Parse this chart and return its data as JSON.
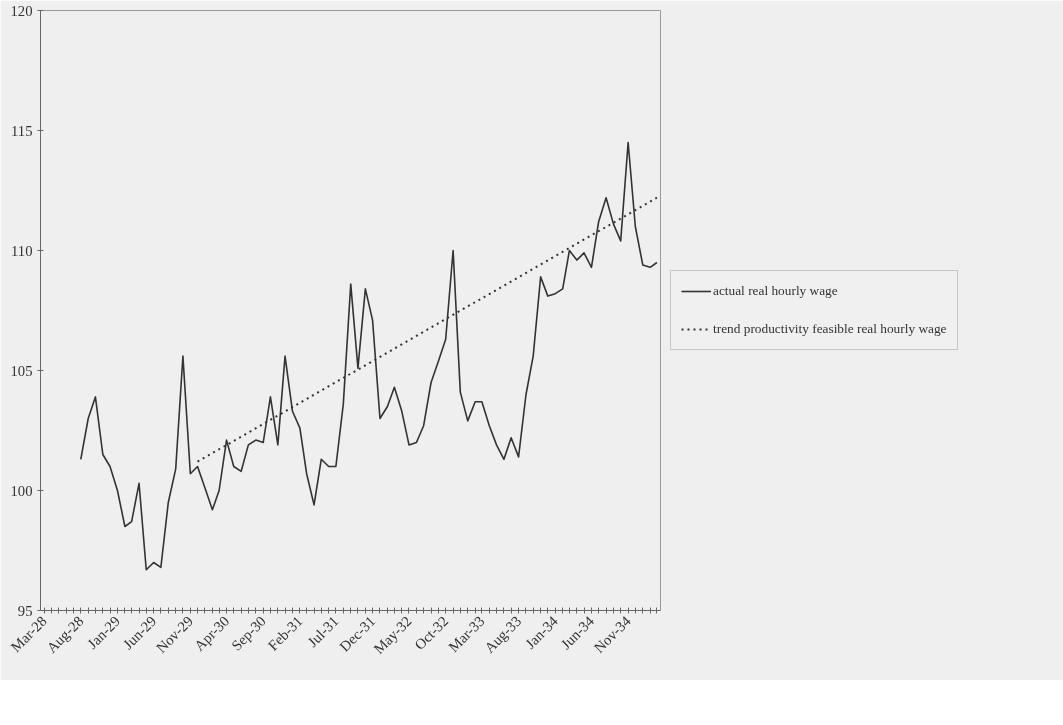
{
  "chart_data": {
    "type": "line",
    "series": [
      {
        "name": "actual real hourly wage",
        "color": "#333333",
        "line_style": "solid",
        "x": [
          "1928-08",
          "1928-09",
          "1928-10",
          "1928-11",
          "1928-12",
          "1929-01",
          "1929-02",
          "1929-03",
          "1929-04",
          "1929-05",
          "1929-06",
          "1929-07",
          "1929-08",
          "1929-09",
          "1929-10",
          "1929-11",
          "1929-12",
          "1930-01",
          "1930-02",
          "1930-03",
          "1930-04",
          "1930-05",
          "1930-06",
          "1930-07",
          "1930-08",
          "1930-09",
          "1930-10",
          "1930-11",
          "1930-12",
          "1931-01",
          "1931-02",
          "1931-03",
          "1931-04",
          "1931-05",
          "1931-06",
          "1931-07",
          "1931-08",
          "1931-09",
          "1931-10",
          "1931-11",
          "1931-12",
          "1932-01",
          "1932-02",
          "1932-03",
          "1932-04",
          "1932-05",
          "1932-06",
          "1932-07",
          "1932-08",
          "1932-09",
          "1932-10",
          "1932-11",
          "1932-12",
          "1933-01",
          "1933-02",
          "1933-03",
          "1933-04",
          "1933-05",
          "1933-06",
          "1933-07",
          "1933-08",
          "1933-09",
          "1933-10",
          "1933-11",
          "1933-12",
          "1934-01",
          "1934-02",
          "1934-03",
          "1934-04",
          "1934-05",
          "1934-06",
          "1934-07",
          "1934-08",
          "1934-09",
          "1934-10",
          "1934-11",
          "1934-12",
          "1935-01",
          "1935-02",
          "1935-03"
        ],
        "values": [
          101.3,
          103.0,
          103.9,
          101.5,
          101.0,
          100.0,
          98.5,
          98.7,
          100.3,
          96.7,
          97.0,
          96.8,
          99.5,
          100.9,
          105.6,
          100.7,
          101.0,
          100.1,
          99.2,
          100.0,
          102.1,
          101.0,
          100.8,
          101.9,
          102.1,
          102.0,
          103.9,
          101.9,
          105.6,
          103.3,
          102.6,
          100.7,
          99.4,
          101.3,
          101.0,
          101.0,
          103.6,
          108.6,
          105.1,
          108.4,
          107.1,
          103.0,
          103.5,
          104.3,
          103.3,
          101.9,
          102.0,
          102.7,
          104.5,
          105.4,
          106.3,
          110.0,
          104.1,
          102.9,
          103.7,
          103.7,
          102.7,
          101.9,
          101.3,
          102.2,
          101.4,
          104.0,
          105.6,
          108.9,
          108.1,
          108.2,
          108.4,
          110.0,
          109.6,
          109.9,
          109.3,
          111.2,
          112.2,
          111.1,
          110.4,
          114.5,
          111.0,
          109.4,
          109.3,
          109.5
        ]
      },
      {
        "name": "trend productivity feasible real hourly wage",
        "color": "#333333",
        "line_style": "dotted",
        "x": [
          "1929-12",
          "1935-03"
        ],
        "values": [
          101.2,
          112.2
        ]
      }
    ],
    "xlim": [
      "1928-02-15",
      "1935-03-16"
    ],
    "xticks": [
      {
        "value": "1928-03",
        "label": "Mar-28"
      },
      {
        "value": "1928-04",
        "label": null
      },
      {
        "value": "1928-05",
        "label": null
      },
      {
        "value": "1928-06",
        "label": null
      },
      {
        "value": "1928-07",
        "label": null
      },
      {
        "value": "1928-08",
        "label": "Aug-28"
      },
      {
        "value": "1928-09",
        "label": null
      },
      {
        "value": "1928-10",
        "label": null
      },
      {
        "value": "1928-11",
        "label": null
      },
      {
        "value": "1928-12",
        "label": null
      },
      {
        "value": "1929-01",
        "label": "Jan-29"
      },
      {
        "value": "1929-02",
        "label": null
      },
      {
        "value": "1929-03",
        "label": null
      },
      {
        "value": "1929-04",
        "label": null
      },
      {
        "value": "1929-05",
        "label": null
      },
      {
        "value": "1929-06",
        "label": "Jun-29"
      },
      {
        "value": "1929-07",
        "label": null
      },
      {
        "value": "1929-08",
        "label": null
      },
      {
        "value": "1929-09",
        "label": null
      },
      {
        "value": "1929-10",
        "label": null
      },
      {
        "value": "1929-11",
        "label": "Nov-29"
      },
      {
        "value": "1929-12",
        "label": null
      },
      {
        "value": "1930-01",
        "label": null
      },
      {
        "value": "1930-02",
        "label": null
      },
      {
        "value": "1930-03",
        "label": null
      },
      {
        "value": "1930-04",
        "label": "Apr-30"
      },
      {
        "value": "1930-05",
        "label": null
      },
      {
        "value": "1930-06",
        "label": null
      },
      {
        "value": "1930-07",
        "label": null
      },
      {
        "value": "1930-08",
        "label": null
      },
      {
        "value": "1930-09",
        "label": "Sep-30"
      },
      {
        "value": "1930-10",
        "label": null
      },
      {
        "value": "1930-11",
        "label": null
      },
      {
        "value": "1930-12",
        "label": null
      },
      {
        "value": "1931-01",
        "label": null
      },
      {
        "value": "1931-02",
        "label": "Feb-31"
      },
      {
        "value": "1931-03",
        "label": null
      },
      {
        "value": "1931-04",
        "label": null
      },
      {
        "value": "1931-05",
        "label": null
      },
      {
        "value": "1931-06",
        "label": null
      },
      {
        "value": "1931-07",
        "label": "Jul-31"
      },
      {
        "value": "1931-08",
        "label": null
      },
      {
        "value": "1931-09",
        "label": null
      },
      {
        "value": "1931-10",
        "label": null
      },
      {
        "value": "1931-11",
        "label": null
      },
      {
        "value": "1931-12",
        "label": "Dec-31"
      },
      {
        "value": "1932-01",
        "label": null
      },
      {
        "value": "1932-02",
        "label": null
      },
      {
        "value": "1932-03",
        "label": null
      },
      {
        "value": "1932-04",
        "label": null
      },
      {
        "value": "1932-05",
        "label": "May-32"
      },
      {
        "value": "1932-06",
        "label": null
      },
      {
        "value": "1932-07",
        "label": null
      },
      {
        "value": "1932-08",
        "label": null
      },
      {
        "value": "1932-09",
        "label": null
      },
      {
        "value": "1932-10",
        "label": "Oct-32"
      },
      {
        "value": "1932-11",
        "label": null
      },
      {
        "value": "1932-12",
        "label": null
      },
      {
        "value": "1933-01",
        "label": null
      },
      {
        "value": "1933-02",
        "label": null
      },
      {
        "value": "1933-03",
        "label": "Mar-33"
      },
      {
        "value": "1933-04",
        "label": null
      },
      {
        "value": "1933-05",
        "label": null
      },
      {
        "value": "1933-06",
        "label": null
      },
      {
        "value": "1933-07",
        "label": null
      },
      {
        "value": "1933-08",
        "label": "Aug-33"
      },
      {
        "value": "1933-09",
        "label": null
      },
      {
        "value": "1933-10",
        "label": null
      },
      {
        "value": "1933-11",
        "label": null
      },
      {
        "value": "1933-12",
        "label": null
      },
      {
        "value": "1934-01",
        "label": "Jan-34"
      },
      {
        "value": "1934-02",
        "label": null
      },
      {
        "value": "1934-03",
        "label": null
      },
      {
        "value": "1934-04",
        "label": null
      },
      {
        "value": "1934-05",
        "label": null
      },
      {
        "value": "1934-06",
        "label": "Jun-34"
      },
      {
        "value": "1934-07",
        "label": null
      },
      {
        "value": "1934-08",
        "label": null
      },
      {
        "value": "1934-09",
        "label": null
      },
      {
        "value": "1934-10",
        "label": null
      },
      {
        "value": "1934-11",
        "label": "Nov-34"
      },
      {
        "value": "1934-12",
        "label": null
      },
      {
        "value": "1935-01",
        "label": null
      },
      {
        "value": "1935-02",
        "label": null
      },
      {
        "value": "1935-03",
        "label": null
      }
    ],
    "ylim": [
      95,
      120
    ],
    "yticks": [
      95,
      100,
      105,
      110,
      115,
      120
    ],
    "grid": false,
    "legend": "right",
    "marker": "none"
  }
}
